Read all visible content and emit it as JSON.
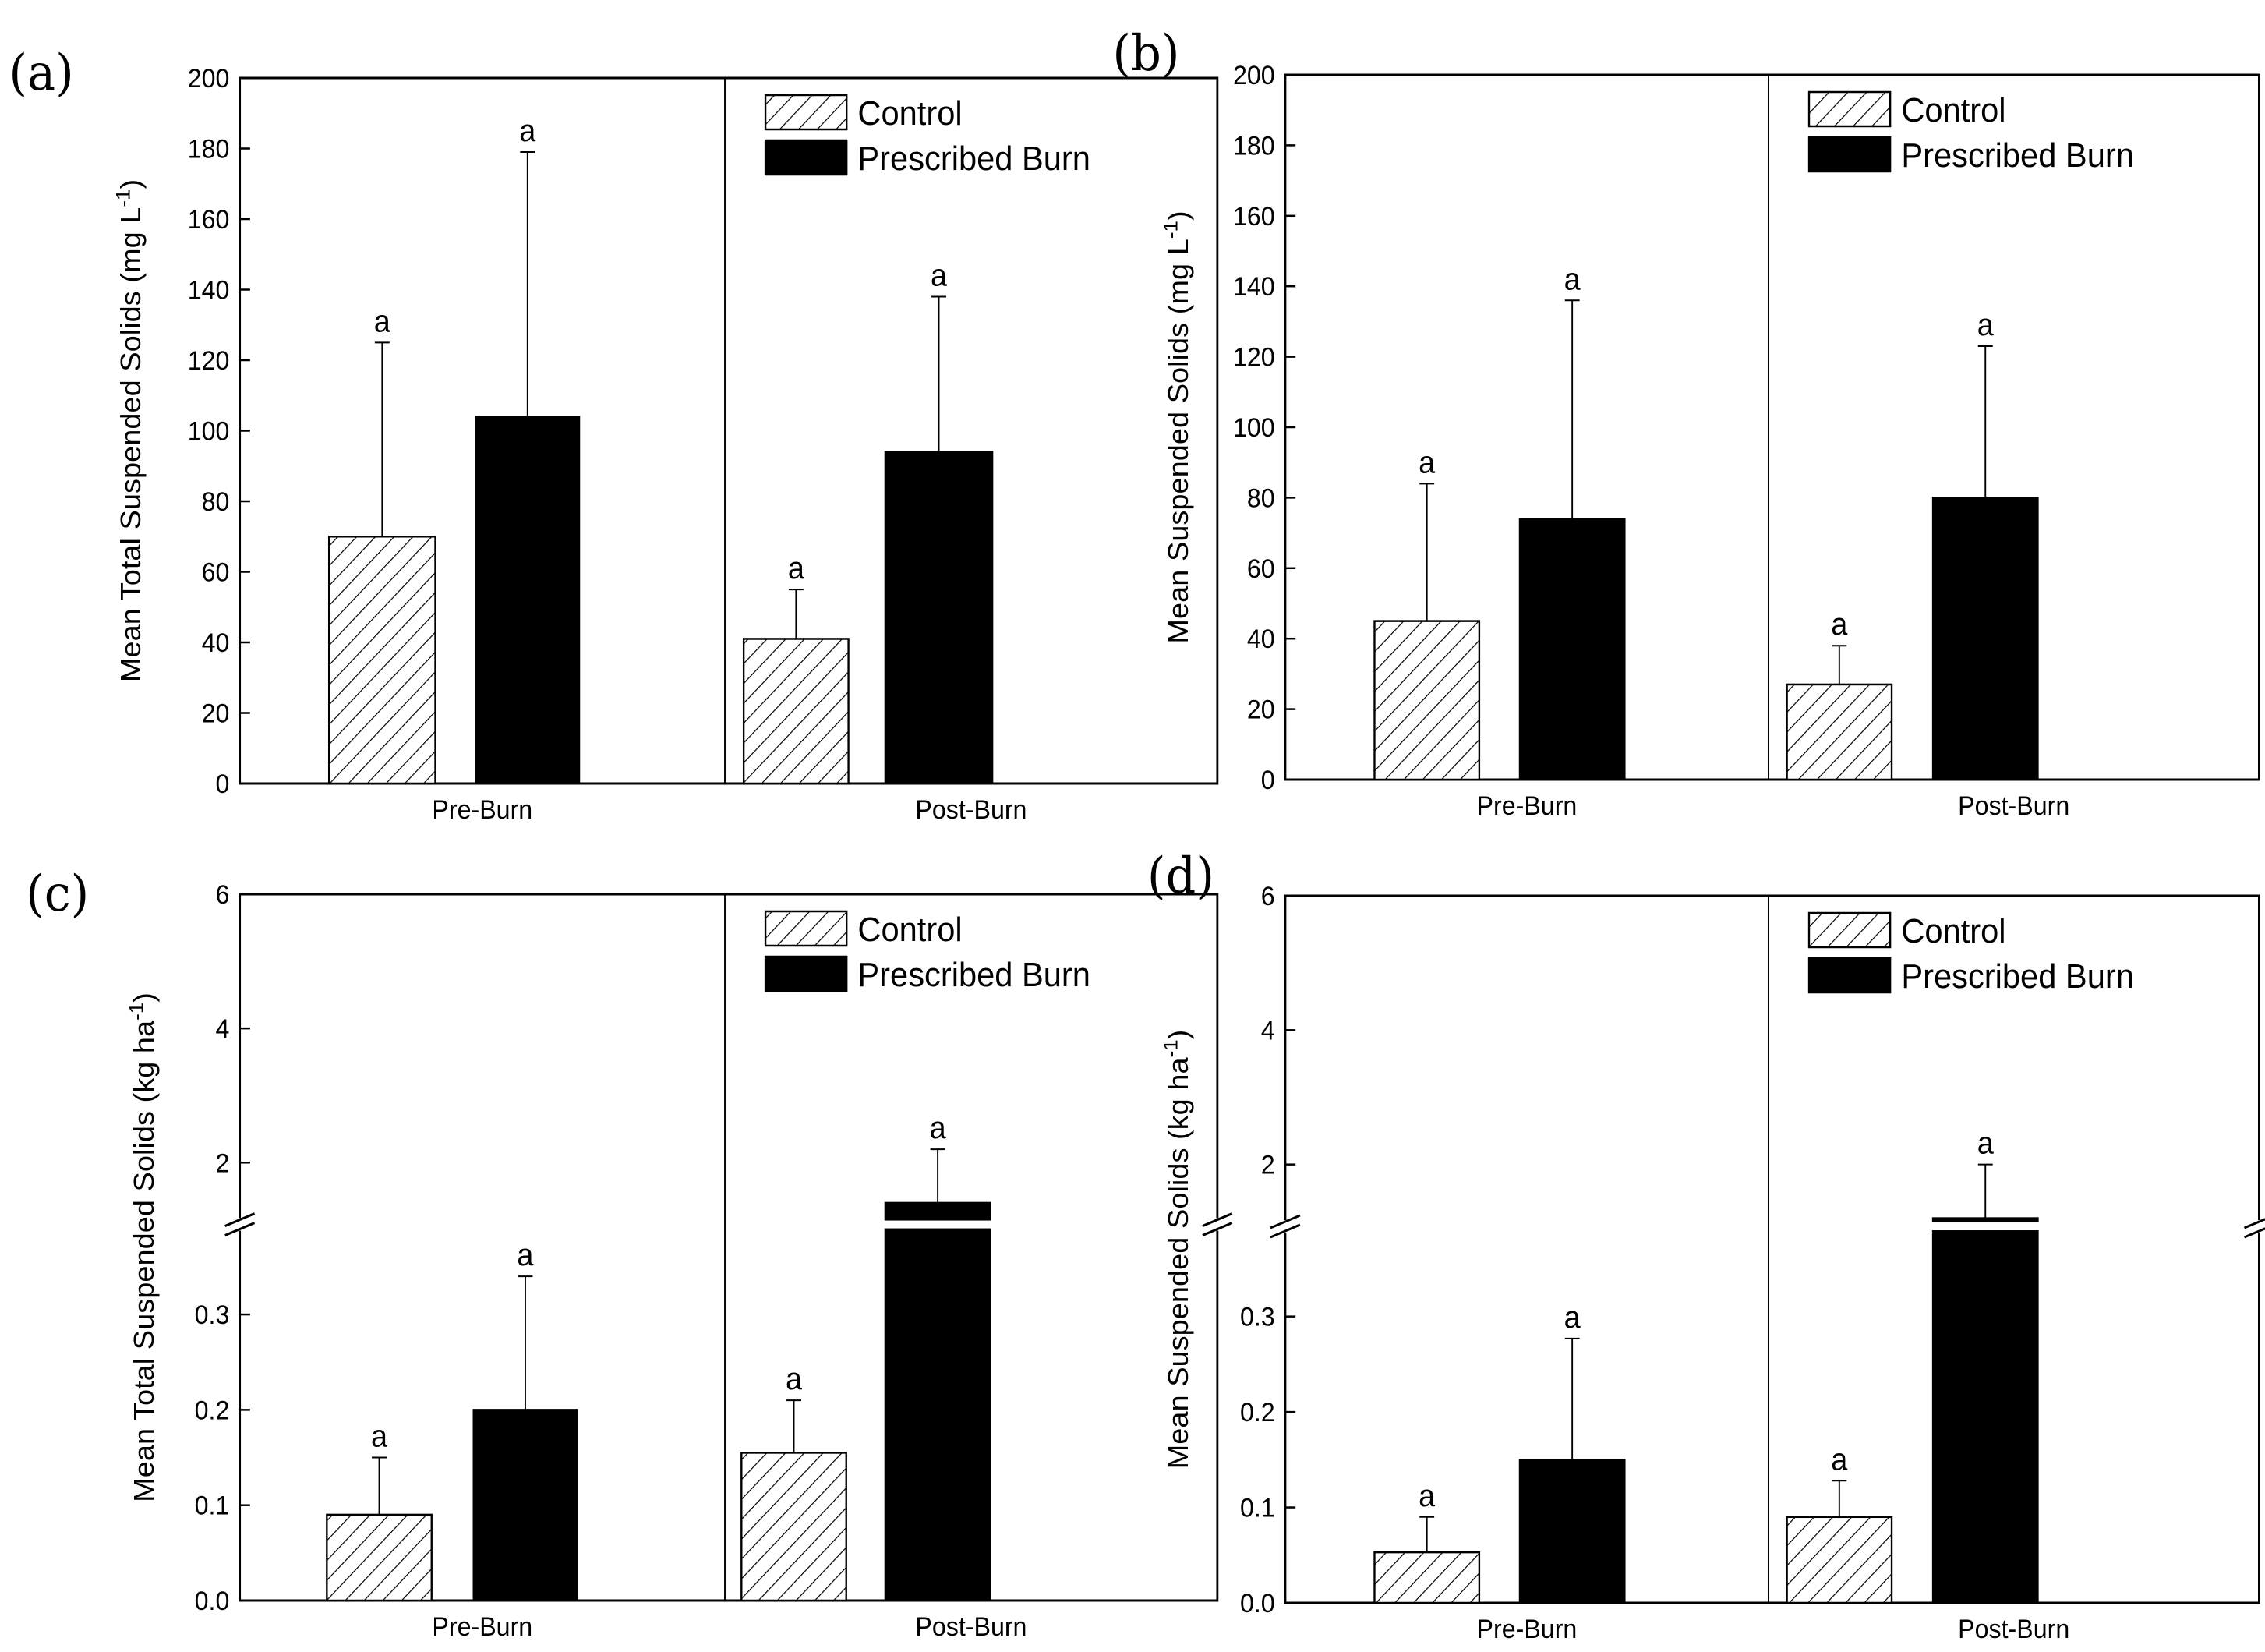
{
  "chart_data": [
    {
      "panel": "(a)",
      "type": "bar",
      "ylabel": "Mean Total Suspended Solids (mg L",
      "ylabel_sup": "-1",
      "ylabel_end": ")",
      "categories": [
        "Pre-Burn",
        "Post-Burn"
      ],
      "ylim": [
        0,
        200
      ],
      "yticks": [
        0,
        20,
        40,
        60,
        80,
        100,
        120,
        140,
        160,
        180,
        200
      ],
      "tick_labels": [
        "0",
        "20",
        "40",
        "60",
        "80",
        "100",
        "120",
        "140",
        "160",
        "180",
        "200"
      ],
      "broken_axis": false,
      "series": [
        {
          "name": "Control",
          "values": [
            70,
            41
          ],
          "errors": [
            125,
            55
          ],
          "sig": [
            "a",
            "a"
          ]
        },
        {
          "name": "Prescribed Burn",
          "values": [
            104,
            94
          ],
          "errors": [
            179,
            138
          ],
          "sig": [
            "a",
            "a"
          ]
        }
      ]
    },
    {
      "panel": "(b)",
      "type": "bar",
      "ylabel": "Mean Suspended Solids (mg L",
      "ylabel_sup": "-1",
      "ylabel_end": ")",
      "categories": [
        "Pre-Burn",
        "Post-Burn"
      ],
      "ylim": [
        0,
        200
      ],
      "yticks": [
        0,
        20,
        40,
        60,
        80,
        100,
        120,
        140,
        160,
        180,
        200
      ],
      "tick_labels": [
        "0",
        "20",
        "40",
        "60",
        "80",
        "100",
        "120",
        "140",
        "160",
        "180",
        "200"
      ],
      "broken_axis": false,
      "series": [
        {
          "name": "Control",
          "values": [
            45,
            27
          ],
          "errors": [
            84,
            38
          ],
          "sig": [
            "a",
            "a"
          ]
        },
        {
          "name": "Prescribed Burn",
          "values": [
            74,
            80
          ],
          "errors": [
            136,
            123
          ],
          "sig": [
            "a",
            "a"
          ]
        }
      ]
    },
    {
      "panel": "(c)",
      "type": "bar",
      "ylabel": "Mean Total Suspended Solids (kg ha",
      "ylabel_sup": "-1",
      "ylabel_end": ")",
      "categories": [
        "Pre-Burn",
        "Post-Burn"
      ],
      "broken_axis": true,
      "lower_range": [
        0,
        0.4
      ],
      "upper_range": [
        1,
        6
      ],
      "yticks": [
        0,
        0.1,
        0.2,
        0.3,
        2,
        4,
        6
      ],
      "tick_labels": [
        "0.0",
        "0.1",
        "0.2",
        "0.3",
        "2",
        "4",
        "6"
      ],
      "series": [
        {
          "name": "Control",
          "values": [
            0.09,
            0.155
          ],
          "errors": [
            0.15,
            0.21
          ],
          "sig": [
            "a",
            "a"
          ]
        },
        {
          "name": "Prescribed Burn",
          "values": [
            0.2,
            1.4
          ],
          "errors": [
            0.34,
            2.2
          ],
          "sig": [
            "a",
            "a"
          ]
        }
      ]
    },
    {
      "panel": "(d)",
      "type": "bar",
      "ylabel": "Mean Suspended Solids (kg ha",
      "ylabel_sup": "-1",
      "ylabel_end": ")",
      "categories": [
        "Pre-Burn",
        "Post-Burn"
      ],
      "broken_axis": true,
      "lower_range": [
        0,
        0.4
      ],
      "upper_range": [
        1,
        6
      ],
      "yticks": [
        0,
        0.1,
        0.2,
        0.3,
        2,
        4,
        6
      ],
      "tick_labels": [
        "0.0",
        "0.1",
        "0.2",
        "0.3",
        "2",
        "4",
        "6"
      ],
      "series": [
        {
          "name": "Control",
          "values": [
            0.053,
            0.09
          ],
          "errors": [
            0.09,
            0.128
          ],
          "sig": [
            "a",
            "a"
          ]
        },
        {
          "name": "Prescribed Burn",
          "values": [
            0.15,
            1.2
          ],
          "errors": [
            0.277,
            2.0
          ],
          "sig": [
            "a",
            "a"
          ]
        }
      ]
    }
  ],
  "legend": {
    "control": "Control",
    "burn": "Prescribed Burn"
  },
  "colors": {
    "control_fill": "#ffffff",
    "burn_fill": "#000000",
    "axis": "#000000"
  }
}
